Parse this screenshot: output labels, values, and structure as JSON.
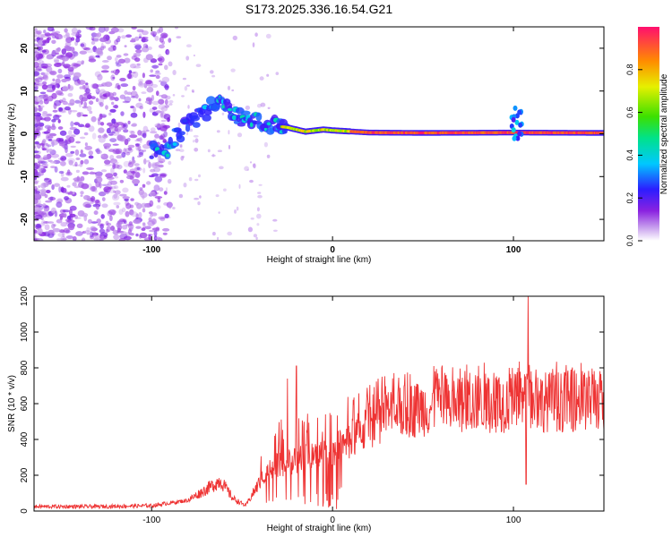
{
  "title": "S173.2025.336.16.54.G21",
  "chart_data": [
    {
      "type": "heatmap",
      "xlabel": "Height of straight line (km)",
      "ylabel": "Frequency (Hz)",
      "xlim": [
        -165,
        150
      ],
      "ylim": [
        -25,
        25
      ],
      "xticks": [
        -100,
        0,
        100
      ],
      "yticks": [
        -20,
        -10,
        0,
        10,
        20
      ],
      "colorbar": {
        "label": "Normalized spectral amplitude",
        "range": [
          0,
          1
        ],
        "ticks": [
          0.0,
          0.2,
          0.4,
          0.6,
          0.8
        ]
      },
      "ridge": [
        {
          "x": -100,
          "f": -4
        },
        {
          "x": -90,
          "f": -3
        },
        {
          "x": -82,
          "f": 2
        },
        {
          "x": -72,
          "f": 5
        },
        {
          "x": -65,
          "f": 7
        },
        {
          "x": -55,
          "f": 5
        },
        {
          "x": -45,
          "f": 3
        },
        {
          "x": -35,
          "f": 2
        },
        {
          "x": -25,
          "f": 1.5
        },
        {
          "x": -15,
          "f": 0.5
        },
        {
          "x": -5,
          "f": 1
        },
        {
          "x": 0,
          "f": 0.8
        },
        {
          "x": 20,
          "f": 0.3
        },
        {
          "x": 50,
          "f": 0.2
        },
        {
          "x": 100,
          "f": 0.3
        },
        {
          "x": 150,
          "f": 0.2
        }
      ]
    },
    {
      "type": "line",
      "xlabel": "Height of straight line (km)",
      "ylabel": "SNR (10 * v/v)",
      "xlim": [
        -165,
        150
      ],
      "ylim": [
        0,
        1200
      ],
      "xticks": [
        -100,
        0,
        100
      ],
      "yticks": [
        0,
        200,
        400,
        600,
        800,
        1000,
        1200
      ],
      "color": "#ee3333",
      "envelope": [
        {
          "x": -165,
          "v": 25
        },
        {
          "x": -130,
          "v": 25
        },
        {
          "x": -100,
          "v": 30
        },
        {
          "x": -80,
          "v": 60
        },
        {
          "x": -70,
          "v": 120
        },
        {
          "x": -62,
          "v": 170
        },
        {
          "x": -55,
          "v": 70
        },
        {
          "x": -48,
          "v": 30
        },
        {
          "x": -38,
          "v": 200
        },
        {
          "x": -30,
          "v": 260
        },
        {
          "x": -20,
          "v": 280
        },
        {
          "x": -10,
          "v": 330
        },
        {
          "x": 0,
          "v": 330
        },
        {
          "x": 10,
          "v": 400
        },
        {
          "x": 20,
          "v": 480
        },
        {
          "x": 30,
          "v": 540
        },
        {
          "x": 50,
          "v": 575
        },
        {
          "x": 80,
          "v": 600
        },
        {
          "x": 110,
          "v": 610
        },
        {
          "x": 150,
          "v": 620
        }
      ],
      "spikes": [
        {
          "x": -20,
          "v": 810
        },
        {
          "x": -25,
          "v": 740
        },
        {
          "x": 108,
          "v": 1200
        },
        {
          "x": 107,
          "v": 150
        },
        {
          "x": -3,
          "v": 60
        }
      ]
    }
  ]
}
